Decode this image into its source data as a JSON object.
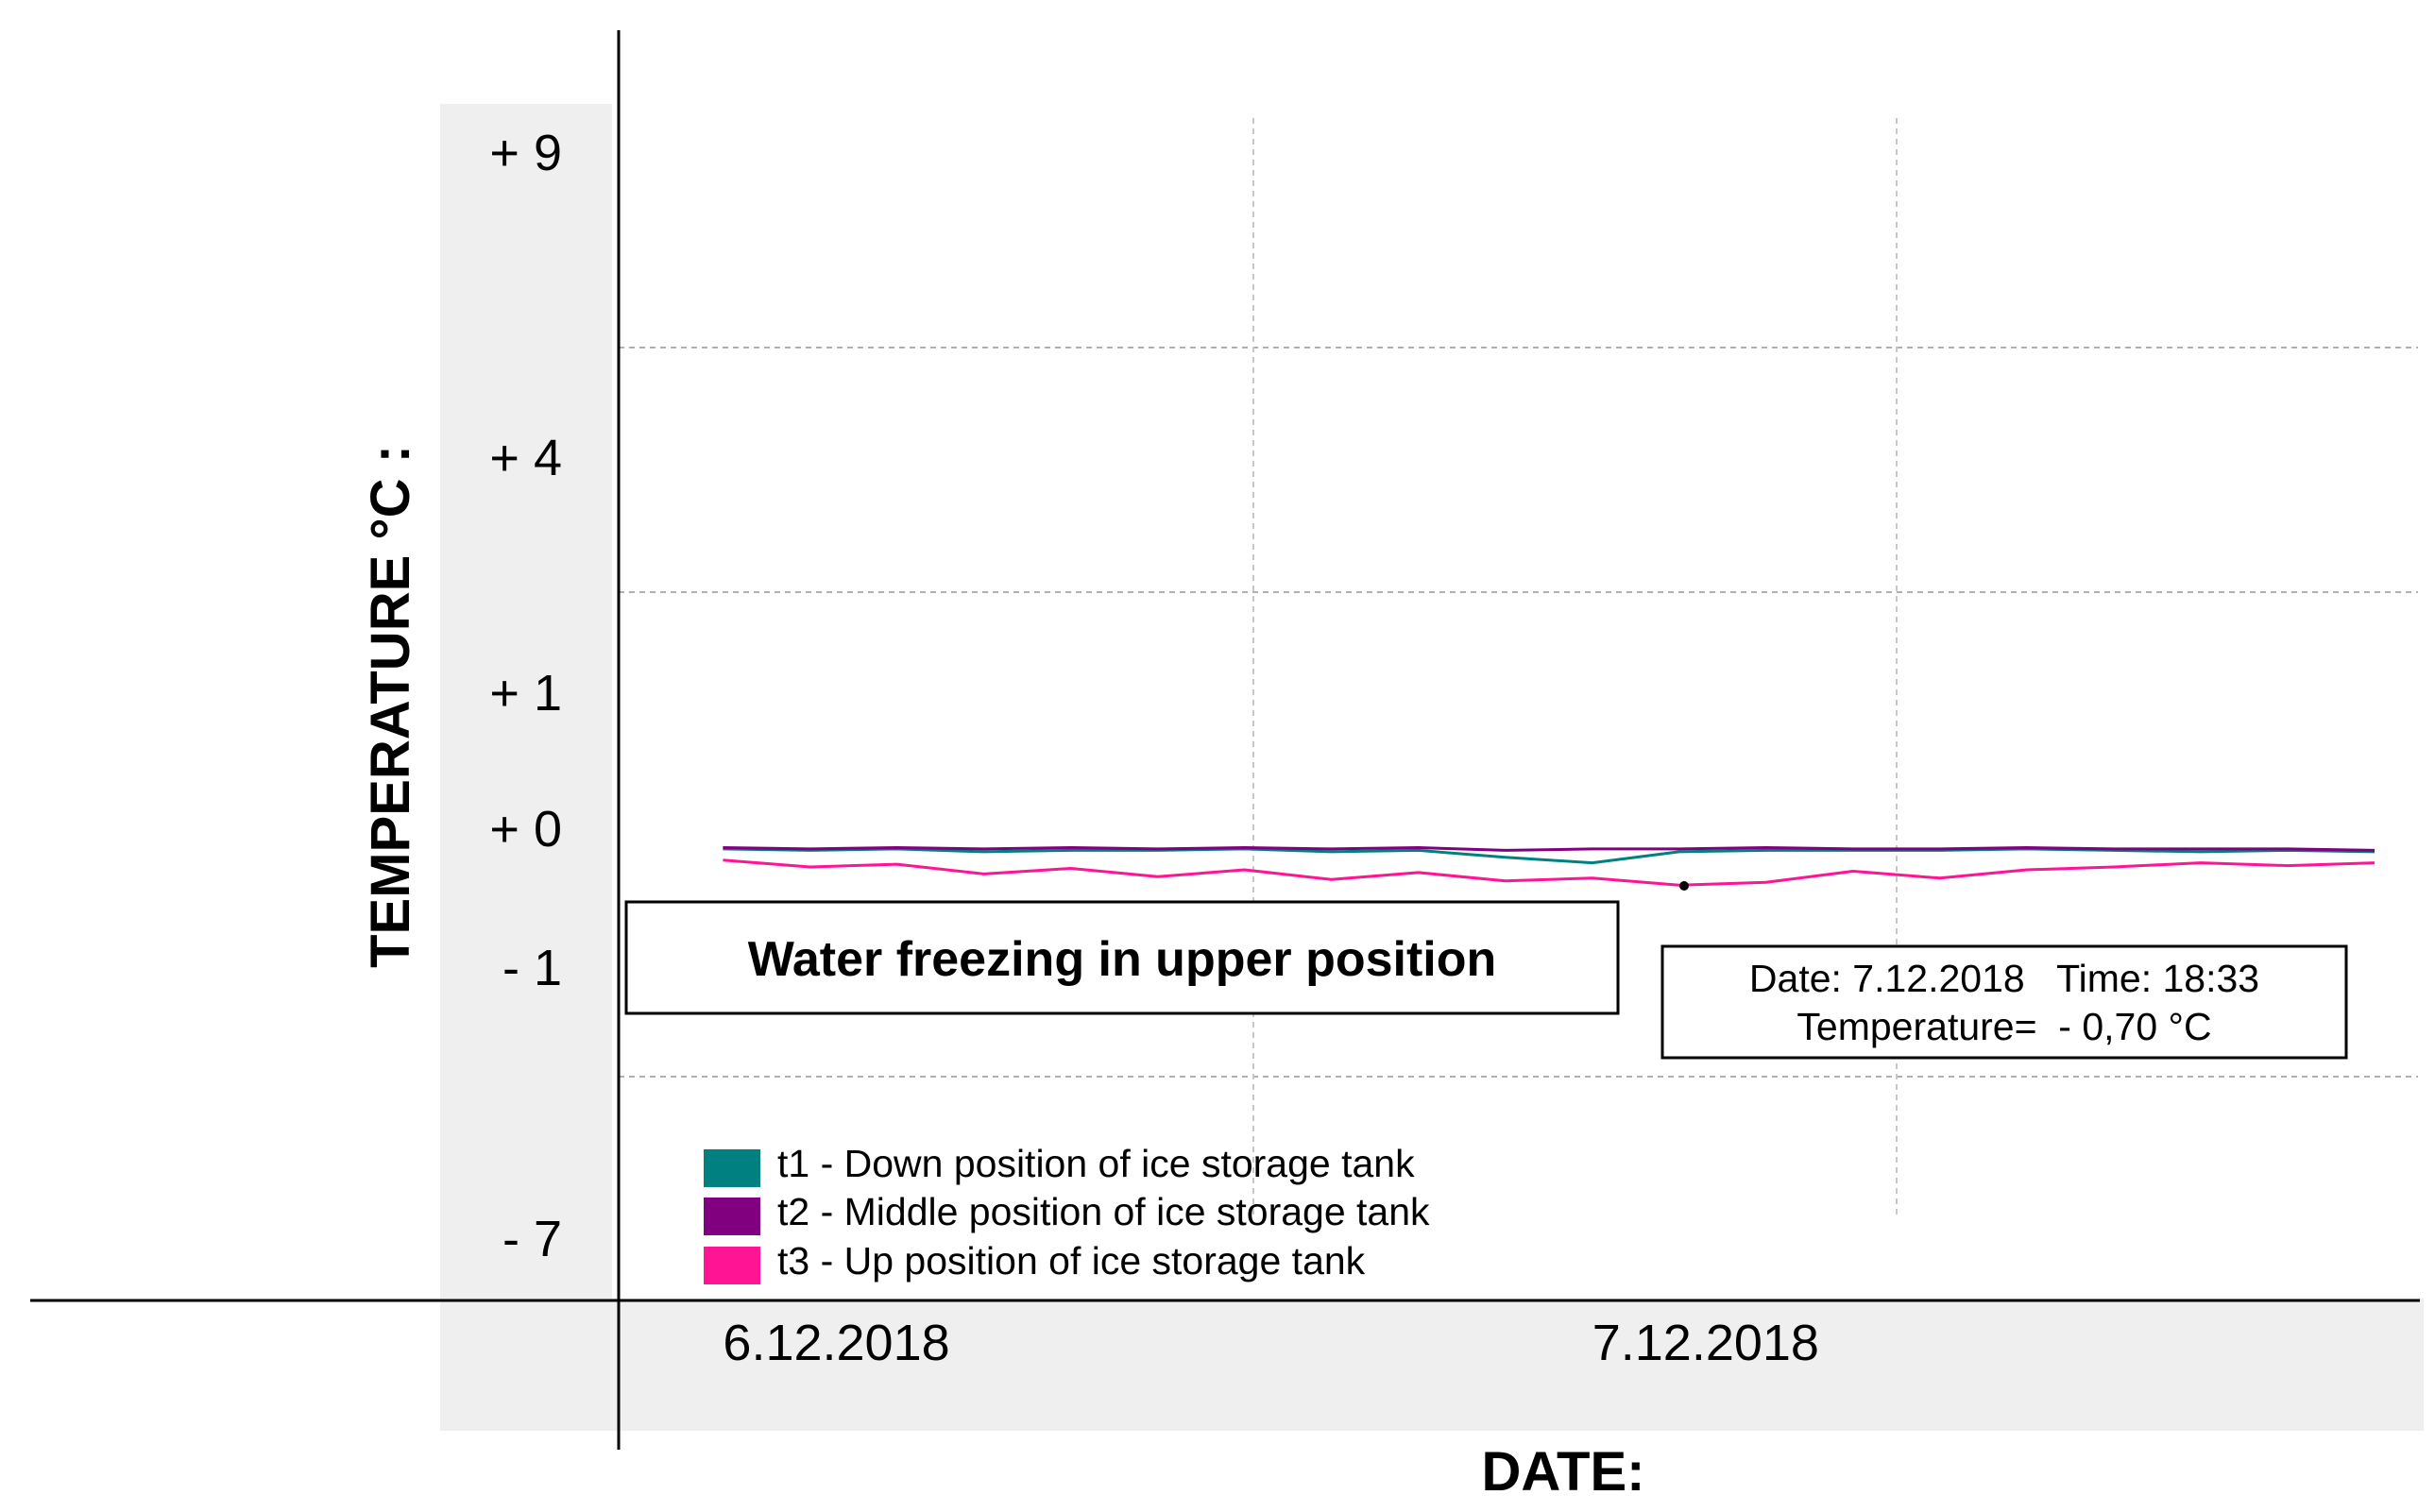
{
  "chart_data": {
    "type": "line",
    "xlabel": "DATE:",
    "ylabel": "TEMPERATURE °C :",
    "y_ticks": [
      {
        "label": "+ 9",
        "value": 9
      },
      {
        "label": "+ 4",
        "value": 4
      },
      {
        "label": "+ 1",
        "value": 1
      },
      {
        "label": "+ 0",
        "value": 0
      },
      {
        "label": "- 1",
        "value": -1
      },
      {
        "label": "- 7",
        "value": -7
      }
    ],
    "x_ticks": [
      {
        "label": "6.12.2018",
        "value": 0
      },
      {
        "label": "7.12.2018",
        "value": 1
      }
    ],
    "xlim": [
      -0.12,
      1.95
    ],
    "grid": true,
    "series": [
      {
        "name": "t1 - Down position of ice storage tank",
        "color": "#008080",
        "x": [
          0,
          0.1,
          0.2,
          0.3,
          0.4,
          0.5,
          0.6,
          0.7,
          0.8,
          0.9,
          1.0,
          1.1,
          1.2,
          1.3,
          1.4,
          1.5,
          1.6,
          1.7,
          1.8,
          1.9
        ],
        "y": [
          -0.02,
          -0.03,
          -0.02,
          -0.04,
          -0.03,
          -0.03,
          -0.02,
          -0.04,
          -0.03,
          -0.08,
          -0.12,
          -0.04,
          -0.03,
          -0.03,
          -0.03,
          -0.02,
          -0.03,
          -0.04,
          -0.03,
          -0.04
        ]
      },
      {
        "name": "t2 - Middle position of ice storage tank",
        "color": "#800080",
        "x": [
          0,
          0.1,
          0.2,
          0.3,
          0.4,
          0.5,
          0.6,
          0.7,
          0.8,
          0.9,
          1.0,
          1.1,
          1.2,
          1.3,
          1.4,
          1.5,
          1.6,
          1.7,
          1.8,
          1.9
        ],
        "y": [
          -0.01,
          -0.02,
          -0.01,
          -0.02,
          -0.01,
          -0.02,
          -0.01,
          -0.02,
          -0.01,
          -0.03,
          -0.02,
          -0.02,
          -0.01,
          -0.02,
          -0.02,
          -0.01,
          -0.02,
          -0.02,
          -0.02,
          -0.03
        ]
      },
      {
        "name": "t3 - Up position of ice storage tank",
        "color": "#ff1493",
        "x": [
          0,
          0.1,
          0.2,
          0.3,
          0.4,
          0.5,
          0.6,
          0.7,
          0.8,
          0.9,
          1.0,
          1.1,
          1.2,
          1.3,
          1.4,
          1.5,
          1.6,
          1.7,
          1.8,
          1.9
        ],
        "y": [
          -0.1,
          -0.15,
          -0.13,
          -0.2,
          -0.16,
          -0.22,
          -0.17,
          -0.24,
          -0.19,
          -0.25,
          -0.23,
          -0.28,
          -0.26,
          -0.18,
          -0.23,
          -0.17,
          -0.15,
          -0.12,
          -0.14,
          -0.12
        ]
      }
    ]
  },
  "annotation": {
    "text": "Water freezing in upper position"
  },
  "tooltip": {
    "line1": "Date: 7.12.2018   Time: 18:33",
    "line2": "Temperature=  - 0,70 °C"
  },
  "legend": {
    "items": [
      {
        "label": "t1 - Down position of ice storage tank",
        "color": "#008080"
      },
      {
        "label": "t2 - Middle position of ice storage tank",
        "color": "#800080"
      },
      {
        "label": "t3 - Up position of ice storage tank",
        "color": "#ff1493"
      }
    ]
  }
}
